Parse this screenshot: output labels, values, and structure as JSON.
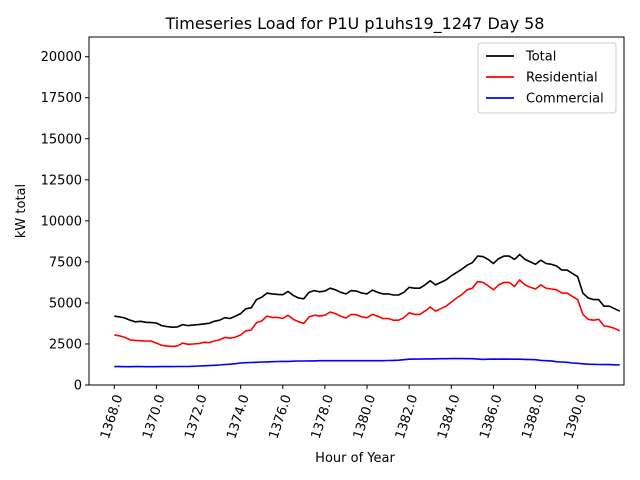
{
  "chart_data": {
    "type": "line",
    "title": "Timeseries Load for P1U p1uhs19_1247  Day 58",
    "xlabel": "Hour of Year",
    "ylabel": "kW total",
    "xlim": [
      1366.8,
      1392.2
    ],
    "ylim": [
      0,
      21200
    ],
    "x_ticks": [
      1368.0,
      1370.0,
      1372.0,
      1374.0,
      1376.0,
      1378.0,
      1380.0,
      1382.0,
      1384.0,
      1386.0,
      1388.0,
      1390.0
    ],
    "x_tick_labels": [
      "1368.0",
      "1370.0",
      "1372.0",
      "1374.0",
      "1376.0",
      "1378.0",
      "1380.0",
      "1382.0",
      "1384.0",
      "1386.0",
      "1388.0",
      "1390.0"
    ],
    "y_ticks": [
      0,
      2500,
      5000,
      7500,
      10000,
      12500,
      15000,
      17500,
      20000
    ],
    "y_tick_labels": [
      "0",
      "2500",
      "5000",
      "7500",
      "10000",
      "12500",
      "15000",
      "17500",
      "20000"
    ],
    "legend_position": "top-right",
    "x_start": 1368.0,
    "x_step": 0.25,
    "series": [
      {
        "name": "Total",
        "color": "#000000",
        "values": [
          4200,
          4150,
          4080,
          3950,
          3850,
          3880,
          3820,
          3800,
          3780,
          3620,
          3560,
          3520,
          3540,
          3680,
          3620,
          3650,
          3680,
          3720,
          3760,
          3880,
          3950,
          4100,
          4050,
          4200,
          4350,
          4650,
          4700,
          5200,
          5350,
          5600,
          5550,
          5520,
          5500,
          5700,
          5450,
          5300,
          5250,
          5650,
          5750,
          5680,
          5720,
          5900,
          5800,
          5650,
          5550,
          5750,
          5720,
          5600,
          5550,
          5780,
          5650,
          5550,
          5550,
          5480,
          5480,
          5650,
          5950,
          5900,
          5900,
          6100,
          6350,
          6100,
          6250,
          6400,
          6650,
          6850,
          7050,
          7300,
          7450,
          7850,
          7820,
          7650,
          7400,
          7700,
          7850,
          7850,
          7650,
          7950,
          7650,
          7500,
          7350,
          7600,
          7400,
          7350,
          7250,
          7000,
          7000,
          6800,
          6600,
          5600,
          5300,
          5200,
          5200,
          4800,
          4800,
          4650,
          4500
        ]
      },
      {
        "name": "Residential",
        "color": "#ff0000",
        "values": [
          3050,
          3000,
          2900,
          2750,
          2720,
          2700,
          2680,
          2680,
          2550,
          2420,
          2380,
          2350,
          2380,
          2550,
          2480,
          2500,
          2520,
          2600,
          2580,
          2680,
          2750,
          2900,
          2850,
          2920,
          3050,
          3300,
          3350,
          3800,
          3900,
          4200,
          4120,
          4120,
          4050,
          4250,
          4000,
          3850,
          3750,
          4150,
          4250,
          4200,
          4250,
          4450,
          4350,
          4200,
          4080,
          4300,
          4280,
          4150,
          4100,
          4300,
          4200,
          4050,
          4050,
          3950,
          3950,
          4100,
          4400,
          4300,
          4300,
          4500,
          4750,
          4500,
          4650,
          4800,
          5050,
          5300,
          5500,
          5800,
          5900,
          6300,
          6250,
          6050,
          5800,
          6100,
          6250,
          6250,
          6000,
          6400,
          6100,
          5950,
          5850,
          6100,
          5900,
          5850,
          5800,
          5600,
          5600,
          5400,
          5200,
          4300,
          4000,
          3950,
          4000,
          3600,
          3550,
          3450,
          3300
        ]
      },
      {
        "name": "Commercial",
        "color": "#0000ff",
        "values": [
          1120,
          1120,
          1115,
          1115,
          1118,
          1118,
          1115,
          1115,
          1115,
          1118,
          1120,
          1120,
          1125,
          1130,
          1130,
          1140,
          1160,
          1170,
          1180,
          1200,
          1220,
          1250,
          1270,
          1300,
          1340,
          1360,
          1370,
          1380,
          1400,
          1410,
          1420,
          1430,
          1440,
          1440,
          1450,
          1460,
          1460,
          1470,
          1470,
          1480,
          1480,
          1480,
          1480,
          1480,
          1480,
          1480,
          1480,
          1480,
          1480,
          1480,
          1480,
          1480,
          1490,
          1500,
          1510,
          1540,
          1570,
          1580,
          1580,
          1590,
          1590,
          1595,
          1600,
          1600,
          1610,
          1610,
          1610,
          1600,
          1600,
          1580,
          1560,
          1570,
          1580,
          1570,
          1580,
          1570,
          1570,
          1570,
          1560,
          1550,
          1540,
          1500,
          1480,
          1470,
          1420,
          1400,
          1380,
          1340,
          1320,
          1290,
          1270,
          1260,
          1250,
          1240,
          1240,
          1230,
          1220
        ]
      }
    ]
  }
}
